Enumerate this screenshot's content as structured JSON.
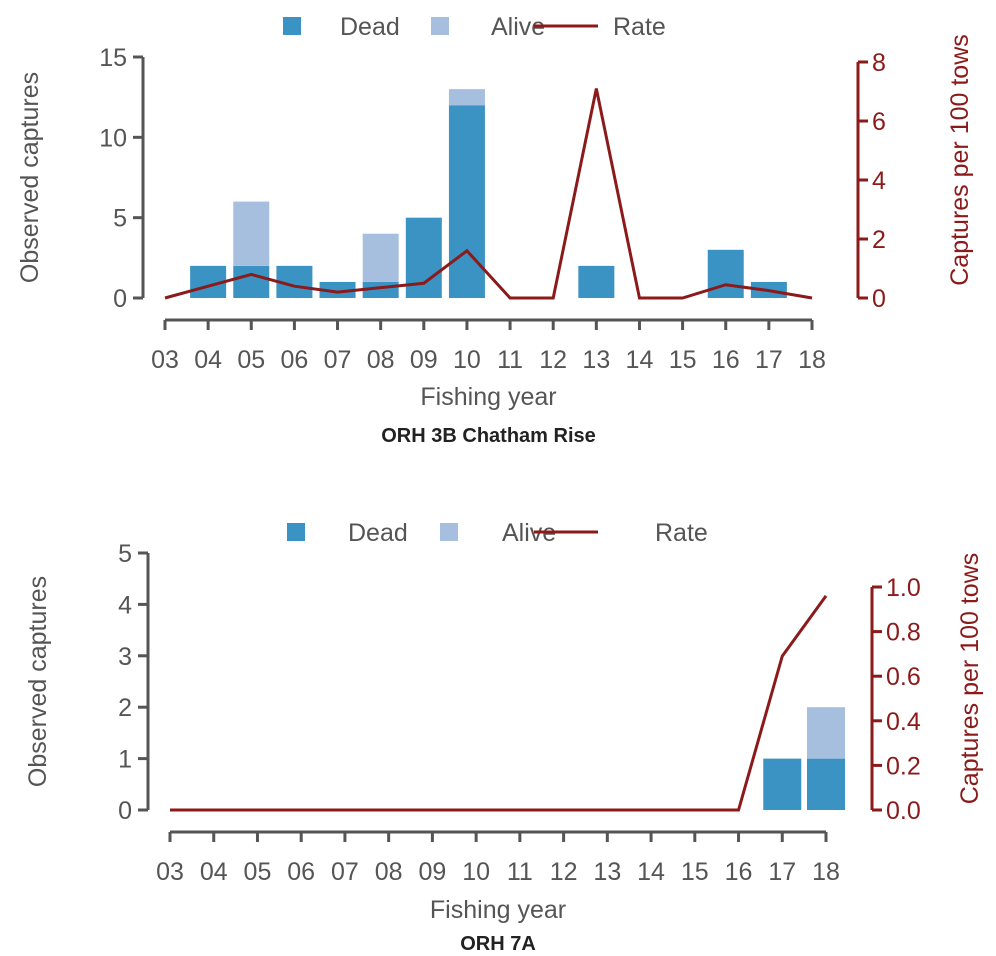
{
  "colors": {
    "dead": "#3a93c3",
    "alive": "#a7bfdf",
    "rate": "#8b1a1a",
    "axis": "#555555"
  },
  "chart_data": [
    {
      "type": "bar",
      "title": "ORH 3B Chatham Rise",
      "xlabel": "Fishing year",
      "ylabel": "Observed captures",
      "y2label": "Captures per 100 tows",
      "legend": [
        "Dead",
        "Alive",
        "Rate"
      ],
      "legend_placement": "top-center",
      "categories": [
        "03",
        "04",
        "05",
        "06",
        "07",
        "08",
        "09",
        "10",
        "11",
        "12",
        "13",
        "14",
        "15",
        "16",
        "17",
        "18"
      ],
      "ylim": [
        0,
        15
      ],
      "yticks": [
        0,
        5,
        10,
        15
      ],
      "y2lim": [
        0,
        8
      ],
      "y2ticks": [
        0,
        2,
        4,
        6,
        8
      ],
      "series": [
        {
          "name": "Dead",
          "kind": "bar",
          "values": [
            0,
            2,
            2,
            2,
            1,
            1,
            5,
            12,
            0,
            0,
            2,
            0,
            0,
            3,
            1,
            0
          ]
        },
        {
          "name": "Alive",
          "kind": "bar",
          "values": [
            0,
            0,
            4,
            0,
            0,
            3,
            0,
            1,
            0,
            0,
            0,
            0,
            0,
            0,
            0,
            0
          ]
        },
        {
          "name": "Rate",
          "kind": "line",
          "axis": "right",
          "values": [
            0,
            0.4,
            0.8,
            0.4,
            0.2,
            0.35,
            0.5,
            1.6,
            0,
            0,
            7.1,
            0,
            0,
            0.45,
            0.25,
            0
          ]
        }
      ]
    },
    {
      "type": "bar",
      "title": "ORH 7A",
      "xlabel": "Fishing year",
      "ylabel": "Observed captures",
      "y2label": "Captures per 100 tows",
      "legend": [
        "Dead",
        "Alive",
        "Rate"
      ],
      "legend_placement": "top-center",
      "categories": [
        "03",
        "04",
        "05",
        "06",
        "07",
        "08",
        "09",
        "10",
        "11",
        "12",
        "13",
        "14",
        "15",
        "16",
        "17",
        "18"
      ],
      "ylim": [
        0,
        5
      ],
      "yticks": [
        0,
        1,
        2,
        3,
        4,
        5
      ],
      "y2lim": [
        0,
        1.0
      ],
      "y2ticks": [
        "0.0",
        "0.2",
        "0.4",
        "0.6",
        "0.8",
        "1.0"
      ],
      "series": [
        {
          "name": "Dead",
          "kind": "bar",
          "values": [
            0,
            0,
            0,
            0,
            0,
            0,
            0,
            0,
            0,
            0,
            0,
            0,
            0,
            0,
            1,
            1
          ]
        },
        {
          "name": "Alive",
          "kind": "bar",
          "values": [
            0,
            0,
            0,
            0,
            0,
            0,
            0,
            0,
            0,
            0,
            0,
            0,
            0,
            0,
            0,
            1
          ]
        },
        {
          "name": "Rate",
          "kind": "line",
          "axis": "right",
          "values": [
            0,
            0,
            0,
            0,
            0,
            0,
            0,
            0,
            0,
            0,
            0,
            0,
            0,
            0,
            0.69,
            0.96
          ]
        }
      ]
    }
  ]
}
